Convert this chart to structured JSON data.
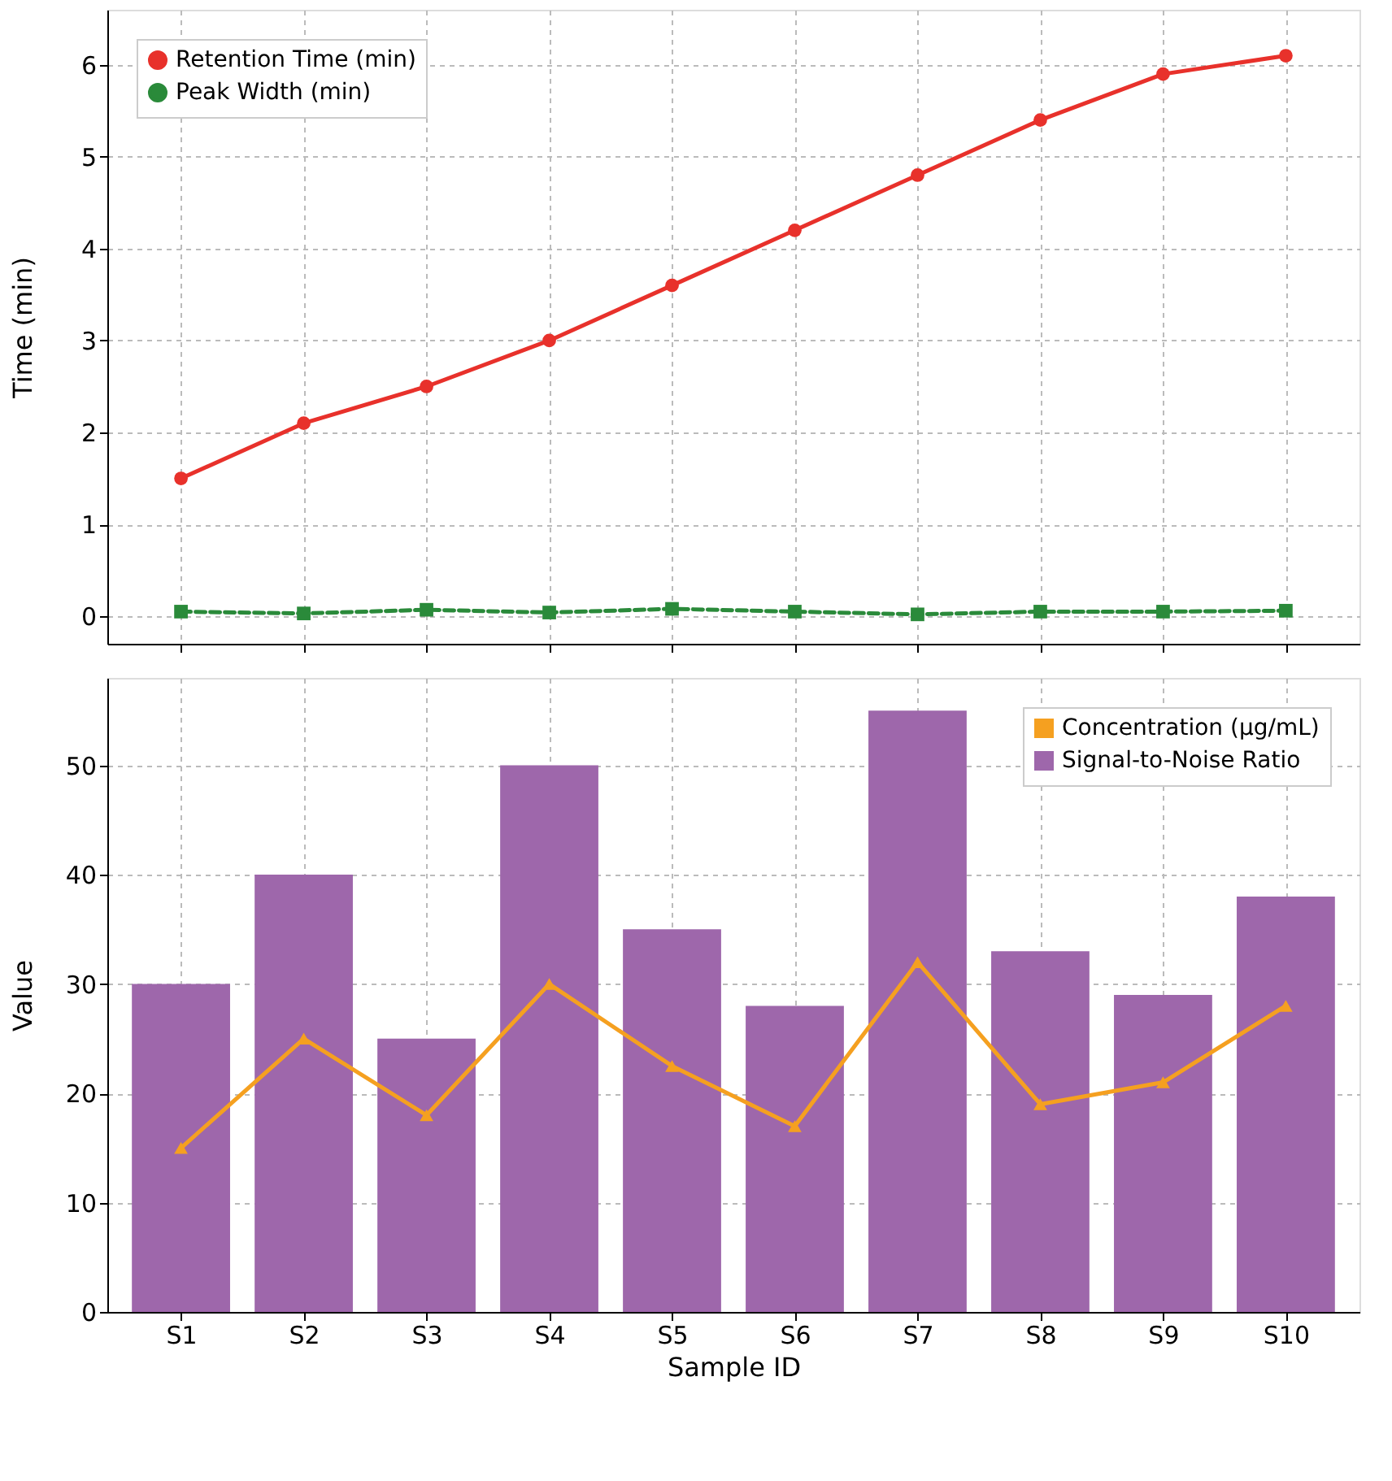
{
  "chart_data": [
    {
      "type": "line",
      "ylabel": "Time (min)",
      "categories": [
        null,
        null,
        null,
        null,
        null,
        null,
        null,
        null,
        null,
        null
      ],
      "ylim": [
        -0.3,
        6.6
      ],
      "yticks": [
        0,
        1,
        2,
        3,
        4,
        5,
        6
      ],
      "grid": true,
      "legend": "top left",
      "tick_labels": "y",
      "series": [
        {
          "name": "Retention Time (min)",
          "color": "#e8312b",
          "marker": "circle",
          "line_style": "solid",
          "values": [
            1.5,
            2.1,
            2.5,
            3.0,
            3.6,
            4.2,
            4.8,
            5.4,
            5.9,
            6.1
          ]
        },
        {
          "name": "Peak Width (min)",
          "color": "#2a8a3a",
          "marker": "square",
          "line_style": "dashed",
          "values": [
            0.05,
            0.03,
            0.07,
            0.04,
            0.08,
            0.05,
            0.02,
            0.05,
            0.05,
            0.06
          ]
        }
      ]
    },
    {
      "type": "bar",
      "xlabel": "Sample ID",
      "ylabel": "Value",
      "categories": [
        "S1",
        "S2",
        "S3",
        "S4",
        "S5",
        "S6",
        "S7",
        "S8",
        "S9",
        "S10"
      ],
      "ylim": [
        0,
        58
      ],
      "yticks": [
        0,
        10,
        20,
        30,
        40,
        50
      ],
      "grid": true,
      "legend": "top right",
      "series": [
        {
          "name": "Concentration (µg/mL)",
          "type": "line",
          "color": "#f5a020",
          "marker": "triangle",
          "line_style": "solid",
          "values": [
            15,
            25,
            18,
            30,
            22.5,
            17,
            32,
            19,
            21,
            28
          ]
        },
        {
          "name": "Signal-to-Noise Ratio",
          "type": "bar",
          "color": "#9e67ab",
          "values": [
            30,
            40,
            25,
            50,
            35,
            28,
            55,
            33,
            29,
            38
          ]
        }
      ]
    }
  ]
}
